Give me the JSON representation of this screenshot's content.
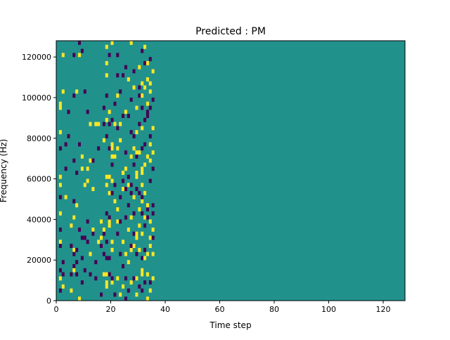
{
  "chart_data": {
    "type": "heatmap",
    "title": "Predicted : PM",
    "xlabel": "Time step",
    "ylabel": "Frequency (Hz)",
    "xlim": [
      0,
      128
    ],
    "ylim": [
      0,
      128000
    ],
    "x_ticks": [
      0,
      20,
      40,
      60,
      80,
      100,
      120
    ],
    "x_tick_labels": [
      "0",
      "20",
      "40",
      "60",
      "80",
      "100",
      "120"
    ],
    "y_ticks": [
      0,
      20000,
      40000,
      60000,
      80000,
      100000,
      120000
    ],
    "y_tick_labels": [
      "0",
      "20000",
      "40000",
      "60000",
      "80000",
      "100000",
      "120000"
    ],
    "grid": false,
    "legend": "none",
    "colors": {
      "background": "#21918c",
      "low": "#440154",
      "high": "#fde725"
    },
    "rows": 64,
    "row_height_hz": 2000,
    "background_value": 0,
    "value_legend": {
      "-1": "low",
      "0": "background",
      "1": "high"
    },
    "cells": [
      [
        1,
        41,
        1
      ],
      [
        1,
        37,
        -1
      ],
      [
        1,
        30,
        1
      ],
      [
        1,
        28,
        1
      ],
      [
        1,
        25,
        -1
      ],
      [
        1,
        21,
        1
      ],
      [
        1,
        17,
        -1
      ],
      [
        1,
        14,
        1
      ],
      [
        1,
        13,
        -1
      ],
      [
        1,
        7,
        -1
      ],
      [
        1,
        5,
        1
      ],
      [
        1,
        2,
        -1
      ],
      [
        1,
        47,
        1
      ],
      [
        1,
        48,
        1
      ],
      [
        2,
        60,
        1
      ],
      [
        2,
        51,
        1
      ],
      [
        2,
        9,
        -1
      ],
      [
        2,
        6,
        -1
      ],
      [
        2,
        3,
        1
      ],
      [
        3,
        38,
        -1
      ],
      [
        3,
        32,
        -1
      ],
      [
        3,
        25,
        1
      ],
      [
        4,
        40,
        -1
      ],
      [
        4,
        46,
        -1
      ],
      [
        5,
        18,
        1
      ],
      [
        5,
        13,
        -1
      ],
      [
        5,
        6,
        -1
      ],
      [
        5,
        2,
        1
      ],
      [
        6,
        60,
        -1
      ],
      [
        6,
        50,
        -1
      ],
      [
        6,
        34,
        -1
      ],
      [
        6,
        24,
        -1
      ],
      [
        6,
        20,
        1
      ],
      [
        6,
        12,
        1
      ],
      [
        6,
        11,
        -1
      ],
      [
        6,
        8,
        -1
      ],
      [
        6,
        7,
        1
      ],
      [
        7,
        51,
        1
      ],
      [
        7,
        31,
        -1
      ],
      [
        7,
        23,
        1
      ],
      [
        7,
        12,
        -1
      ],
      [
        7,
        9,
        -1
      ],
      [
        7,
        6,
        -1
      ],
      [
        8,
        63,
        -1
      ],
      [
        8,
        60,
        1
      ],
      [
        8,
        38,
        -1
      ],
      [
        8,
        17,
        -1
      ],
      [
        8,
        0,
        1
      ],
      [
        9,
        61,
        -1
      ],
      [
        9,
        35,
        1
      ],
      [
        9,
        32,
        1
      ],
      [
        9,
        15,
        -1
      ],
      [
        9,
        10,
        -1
      ],
      [
        9,
        4,
        -1
      ],
      [
        10,
        51,
        -1
      ],
      [
        10,
        28,
        1
      ],
      [
        10,
        15,
        -1
      ],
      [
        10,
        7,
        -1
      ],
      [
        11,
        46,
        -1
      ],
      [
        11,
        32,
        1
      ],
      [
        11,
        29,
        1
      ],
      [
        11,
        19,
        -1
      ],
      [
        11,
        14,
        -1
      ],
      [
        12,
        43,
        1
      ],
      [
        12,
        34,
        1
      ],
      [
        12,
        11,
        1
      ],
      [
        12,
        6,
        -1
      ],
      [
        13,
        34,
        -1
      ],
      [
        13,
        27,
        1
      ],
      [
        13,
        17,
        1
      ],
      [
        13,
        16,
        -1
      ],
      [
        14,
        43,
        1
      ],
      [
        14,
        9,
        -1
      ],
      [
        14,
        5,
        -1
      ],
      [
        15,
        43,
        1
      ],
      [
        15,
        37,
        -1
      ],
      [
        15,
        14,
        1
      ],
      [
        16,
        19,
        1
      ],
      [
        16,
        15,
        1
      ],
      [
        16,
        13,
        -1
      ],
      [
        16,
        1,
        -1
      ],
      [
        17,
        6,
        1
      ],
      [
        17,
        11,
        -1
      ],
      [
        17,
        16,
        -1
      ],
      [
        17,
        17,
        1
      ],
      [
        17,
        39,
        1
      ],
      [
        17,
        43,
        -1
      ],
      [
        17,
        47,
        -1
      ],
      [
        18,
        3,
        1
      ],
      [
        18,
        4,
        1
      ],
      [
        18,
        6,
        1
      ],
      [
        18,
        10,
        -1
      ],
      [
        18,
        14,
        -1
      ],
      [
        18,
        21,
        -1
      ],
      [
        18,
        28,
        1
      ],
      [
        18,
        30,
        1
      ],
      [
        18,
        40,
        -1
      ],
      [
        18,
        44,
        1
      ],
      [
        18,
        50,
        -1
      ],
      [
        18,
        55,
        1
      ],
      [
        18,
        58,
        1
      ],
      [
        18,
        62,
        1
      ],
      [
        19,
        6,
        -1
      ],
      [
        19,
        10,
        -1
      ],
      [
        19,
        18,
        1
      ],
      [
        19,
        19,
        1
      ],
      [
        19,
        20,
        -1
      ],
      [
        19,
        26,
        1
      ],
      [
        19,
        30,
        1
      ],
      [
        19,
        37,
        -1
      ],
      [
        19,
        43,
        -1
      ],
      [
        19,
        46,
        1
      ],
      [
        19,
        60,
        -1
      ],
      [
        20,
        4,
        1
      ],
      [
        20,
        5,
        -1
      ],
      [
        20,
        12,
        1
      ],
      [
        20,
        14,
        1
      ],
      [
        20,
        26,
        -1
      ],
      [
        20,
        29,
        1
      ],
      [
        20,
        33,
        -1
      ],
      [
        20,
        35,
        1
      ],
      [
        20,
        37,
        1
      ],
      [
        20,
        38,
        1
      ],
      [
        20,
        44,
        -1
      ],
      [
        20,
        63,
        1
      ],
      [
        21,
        1,
        -1
      ],
      [
        21,
        24,
        1
      ],
      [
        21,
        28,
        -1
      ],
      [
        21,
        35,
        1
      ],
      [
        21,
        43,
        1
      ],
      [
        21,
        48,
        -1
      ],
      [
        22,
        5,
        1
      ],
      [
        22,
        16,
        -1
      ],
      [
        22,
        19,
        1
      ],
      [
        22,
        22,
        1
      ],
      [
        22,
        37,
        1
      ],
      [
        22,
        42,
        -1
      ],
      [
        22,
        50,
        1
      ],
      [
        22,
        55,
        -1
      ],
      [
        22,
        60,
        -1
      ],
      [
        23,
        1,
        1
      ],
      [
        23,
        11,
        -1
      ],
      [
        23,
        19,
        -1
      ],
      [
        23,
        25,
        -1
      ],
      [
        23,
        39,
        1
      ],
      [
        23,
        43,
        1
      ],
      [
        23,
        51,
        -1
      ],
      [
        24,
        3,
        1
      ],
      [
        24,
        8,
        -1
      ],
      [
        24,
        14,
        1
      ],
      [
        24,
        27,
        1
      ],
      [
        24,
        29,
        -1
      ],
      [
        24,
        31,
        1
      ],
      [
        24,
        45,
        -1
      ],
      [
        24,
        55,
        -1
      ],
      [
        25,
        0,
        -1
      ],
      [
        25,
        5,
        -1
      ],
      [
        25,
        11,
        1
      ],
      [
        25,
        20,
        -1
      ],
      [
        25,
        27,
        -1
      ],
      [
        25,
        32,
        1
      ],
      [
        25,
        36,
        -1
      ],
      [
        25,
        46,
        1
      ],
      [
        25,
        57,
        -1
      ],
      [
        26,
        2,
        -1
      ],
      [
        26,
        9,
        1
      ],
      [
        26,
        17,
        1
      ],
      [
        26,
        23,
        -1
      ],
      [
        26,
        28,
        1
      ],
      [
        26,
        30,
        -1
      ],
      [
        26,
        45,
        -1
      ],
      [
        26,
        54,
        1
      ],
      [
        27,
        4,
        1
      ],
      [
        27,
        12,
        1
      ],
      [
        27,
        13,
        -1
      ],
      [
        27,
        20,
        1
      ],
      [
        27,
        26,
        -1
      ],
      [
        27,
        28,
        -1
      ],
      [
        27,
        35,
        1
      ],
      [
        27,
        41,
        -1
      ],
      [
        27,
        49,
        -1
      ],
      [
        27,
        63,
        1
      ],
      [
        28,
        5,
        -1
      ],
      [
        28,
        13,
        1
      ],
      [
        28,
        16,
        -1
      ],
      [
        28,
        21,
        -1
      ],
      [
        28,
        25,
        1
      ],
      [
        28,
        33,
        -1
      ],
      [
        28,
        37,
        1
      ],
      [
        28,
        40,
        -1
      ],
      [
        28,
        52,
        1
      ],
      [
        28,
        56,
        -1
      ],
      [
        29,
        1,
        1
      ],
      [
        29,
        5,
        1
      ],
      [
        29,
        11,
        -1
      ],
      [
        29,
        15,
        1
      ],
      [
        29,
        16,
        1
      ],
      [
        29,
        27,
        -1
      ],
      [
        29,
        30,
        1
      ],
      [
        29,
        31,
        1
      ],
      [
        29,
        35,
        -1
      ],
      [
        29,
        36,
        1
      ],
      [
        29,
        41,
        1
      ],
      [
        29,
        47,
        1
      ],
      [
        30,
        3,
        -1
      ],
      [
        30,
        12,
        1
      ],
      [
        30,
        18,
        1
      ],
      [
        30,
        22,
        1
      ],
      [
        30,
        26,
        -1
      ],
      [
        30,
        36,
        1
      ],
      [
        30,
        43,
        -1
      ],
      [
        30,
        50,
        -1
      ],
      [
        30,
        52,
        -1
      ],
      [
        30,
        57,
        1
      ],
      [
        31,
        2,
        -1
      ],
      [
        31,
        6,
        1
      ],
      [
        31,
        7,
        1
      ],
      [
        31,
        10,
        -1
      ],
      [
        31,
        16,
        1
      ],
      [
        31,
        21,
        -1
      ],
      [
        31,
        24,
        1
      ],
      [
        31,
        25,
        -1
      ],
      [
        31,
        28,
        1
      ],
      [
        31,
        31,
        1
      ],
      [
        31,
        32,
        1
      ],
      [
        31,
        37,
        -1
      ],
      [
        31,
        42,
        1
      ],
      [
        31,
        47,
        -1
      ],
      [
        31,
        50,
        1
      ],
      [
        31,
        53,
        1
      ],
      [
        31,
        61,
        -1
      ],
      [
        32,
        4,
        -1
      ],
      [
        32,
        10,
        1
      ],
      [
        32,
        12,
        -1
      ],
      [
        32,
        18,
        -1
      ],
      [
        32,
        20,
        1
      ],
      [
        32,
        26,
        1
      ],
      [
        32,
        33,
        1
      ],
      [
        32,
        38,
        -1
      ],
      [
        32,
        44,
        -1
      ],
      [
        32,
        52,
        1
      ],
      [
        32,
        58,
        -1
      ],
      [
        32,
        62,
        1
      ],
      [
        33,
        0,
        1
      ],
      [
        33,
        6,
        1
      ],
      [
        33,
        11,
        1
      ],
      [
        33,
        20,
        -1
      ],
      [
        33,
        22,
        -1
      ],
      [
        33,
        23,
        1
      ],
      [
        33,
        35,
        1
      ],
      [
        33,
        45,
        -1
      ],
      [
        33,
        46,
        -1
      ],
      [
        33,
        48,
        1
      ],
      [
        33,
        54,
        1
      ],
      [
        33,
        58,
        1
      ],
      [
        34,
        2,
        1
      ],
      [
        34,
        4,
        -1
      ],
      [
        34,
        13,
        1
      ],
      [
        34,
        15,
        1
      ],
      [
        34,
        19,
        1
      ],
      [
        34,
        29,
        -1
      ],
      [
        34,
        34,
        1
      ],
      [
        34,
        38,
        1
      ],
      [
        34,
        40,
        -1
      ],
      [
        34,
        47,
        -1
      ],
      [
        34,
        51,
        1
      ],
      [
        34,
        53,
        1
      ],
      [
        34,
        59,
        -1
      ],
      [
        35,
        5,
        1
      ],
      [
        35,
        11,
        1
      ],
      [
        35,
        15,
        -1
      ],
      [
        35,
        17,
        1
      ],
      [
        35,
        21,
        -1
      ],
      [
        35,
        23,
        -1
      ],
      [
        35,
        32,
        -1
      ],
      [
        35,
        36,
        1
      ],
      [
        35,
        42,
        1
      ],
      [
        35,
        49,
        -1
      ],
      [
        35,
        56,
        1
      ]
    ]
  }
}
